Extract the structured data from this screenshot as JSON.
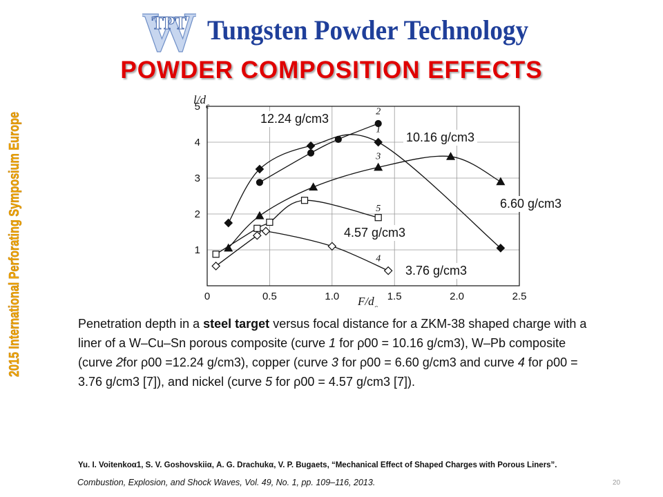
{
  "logo": {
    "mark_text": "TPT",
    "mark_letter": "W",
    "wordmark": "Tungsten Powder Technology"
  },
  "title": "POWDER COMPOSITION EFFECTS",
  "side_banner": "2015 International Perforating Symposium Europe",
  "chart_data": {
    "type": "line",
    "xlabel": "F/d_c",
    "ylabel": "l/d_c",
    "xlim": [
      0,
      2.5
    ],
    "ylim": [
      0,
      5
    ],
    "x_ticks": [
      0,
      0.5,
      1.0,
      1.5,
      2.0,
      2.5
    ],
    "x_tick_labels": [
      "0",
      "0.5",
      "1.0",
      "1.5",
      "2.0",
      "2.5"
    ],
    "y_ticks": [
      1,
      2,
      3,
      4,
      5
    ],
    "y_tick_labels": [
      "1",
      "2",
      "3",
      "4",
      "5"
    ],
    "grid": true,
    "series": [
      {
        "name": "1",
        "marker": "diamond-filled",
        "points": [
          [
            0.17,
            1.75
          ],
          [
            0.42,
            3.25
          ],
          [
            0.83,
            3.9
          ],
          [
            1.37,
            4.0
          ],
          [
            2.35,
            1.05
          ]
        ]
      },
      {
        "name": "2",
        "marker": "circle-filled",
        "points": [
          [
            0.42,
            2.88
          ],
          [
            0.83,
            3.7
          ],
          [
            1.05,
            4.08
          ],
          [
            1.37,
            4.52
          ]
        ]
      },
      {
        "name": "3",
        "marker": "triangle-filled",
        "points": [
          [
            0.17,
            1.05
          ],
          [
            0.42,
            1.95
          ],
          [
            0.85,
            2.75
          ],
          [
            1.37,
            3.3
          ],
          [
            1.95,
            3.6
          ],
          [
            2.35,
            2.9
          ]
        ]
      },
      {
        "name": "4",
        "marker": "diamond-open",
        "points": [
          [
            0.07,
            0.55
          ],
          [
            0.4,
            1.4
          ],
          [
            0.47,
            1.52
          ],
          [
            1.0,
            1.1
          ],
          [
            1.45,
            0.42
          ]
        ]
      },
      {
        "name": "5",
        "marker": "square-open",
        "points": [
          [
            0.07,
            0.88
          ],
          [
            0.4,
            1.6
          ],
          [
            0.5,
            1.77
          ],
          [
            0.78,
            2.38
          ],
          [
            1.37,
            1.9
          ]
        ]
      }
    ],
    "annotations": [
      "12.24 g/cm3",
      "10.16 g/cm3",
      "6.60 g/cm3",
      "4.57 g/cm3",
      "3.76 g/cm3"
    ]
  },
  "caption": {
    "p1": "Penetration depth in a ",
    "bold": "steel target",
    "p2": " versus focal distance for a ZKM-38 shaped charge with a liner of a W–Cu–Sn porous composite (curve ",
    "c1": "1",
    "p3": " for ρ00 = 10.16 g/cm3), W–Pb composite (curve ",
    "c2": "2",
    "p4": "for ρ00 =12.24 g/cm3), copper (curve ",
    "c3": "3",
    "p5": " for ρ00 = 6.60 g/cm3 and curve ",
    "c4": "4",
    "p6": " for ρ00 = 3.76 g/cm3 [7]), and nickel (curve ",
    "c5": "5",
    "p7": " for ρ00 = 4.57 g/cm3 [7])."
  },
  "reference": {
    "authors": "Yu. I. Voitenkoα1, S. V. Goshovskiiα, A. G. Drachukα, V. P. Bugaets, “Mechanical Effect of Shaped Charges with Porous Liners”.",
    "journal": "Combustion, Explosion, and Shock Waves, Vol. 49, No. 1, pp. 109–116, 2013."
  },
  "page_number": "20",
  "colors": {
    "title": "#e00000",
    "logo_text": "#1f3f9a",
    "logo_mark": "#8aa6d6",
    "side_banner": "#f0a500",
    "chart_ink": "#111111"
  }
}
